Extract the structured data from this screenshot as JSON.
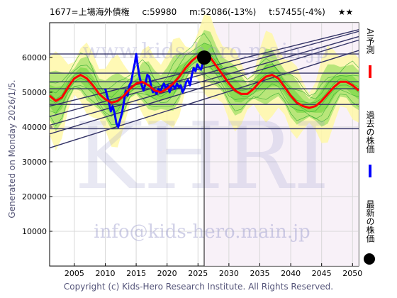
{
  "header": {
    "code_name": "1677=上場海外債権",
    "current": "c:59980",
    "mean": "m:52086(-13%)",
    "target": "t:57455(-4%)",
    "stars": "★★"
  },
  "side_text": "Generated on Monday 2026/1/5.",
  "copyright": "Copyright (c) Kids-Hero Research Institute. All Rights Reserved.",
  "watermark": {
    "top": "www.kids-hero.main.jp",
    "center": "KHRI",
    "bottom": "info@kids-hero.main.jp"
  },
  "legend": [
    {
      "label": "AI予測",
      "color": "#ff0000"
    },
    {
      "label": "過去の株価",
      "color": "#0000ff"
    },
    {
      "label": "最新の株価",
      "color": "#000000"
    }
  ],
  "colors": {
    "prediction": "#ff0000",
    "history": "#0000ff",
    "band_green": "#7fd84a",
    "band_yellow": "#fff8a8",
    "trend_lines": "#333366"
  },
  "chart_data": {
    "type": "line",
    "xlim": [
      2001,
      2051
    ],
    "ylim": [
      0,
      70000
    ],
    "x_ticks": [
      2005,
      2010,
      2015,
      2020,
      2025,
      2030,
      2035,
      2040,
      2045,
      2050
    ],
    "y_ticks": [
      10000,
      20000,
      30000,
      40000,
      50000,
      60000
    ],
    "current_point": {
      "x": 2026.0,
      "y": 59980
    },
    "current_vline_x": 2026.0,
    "series": [
      {
        "name": "過去の株価",
        "points": [
          [
            2010.0,
            51000
          ],
          [
            2010.3,
            49000
          ],
          [
            2010.6,
            47000
          ],
          [
            2010.9,
            44500
          ],
          [
            2011.2,
            46000
          ],
          [
            2011.5,
            44000
          ],
          [
            2011.8,
            41000
          ],
          [
            2012.1,
            40000
          ],
          [
            2012.4,
            42000
          ],
          [
            2012.7,
            44000
          ],
          [
            2013.0,
            47000
          ],
          [
            2013.3,
            50500
          ],
          [
            2013.6,
            49000
          ],
          [
            2013.9,
            52000
          ],
          [
            2014.2,
            53000
          ],
          [
            2014.5,
            56000
          ],
          [
            2014.8,
            58500
          ],
          [
            2015.0,
            61000
          ],
          [
            2015.3,
            57000
          ],
          [
            2015.6,
            54000
          ],
          [
            2015.9,
            52000
          ],
          [
            2016.2,
            50500
          ],
          [
            2016.5,
            52500
          ],
          [
            2016.8,
            55000
          ],
          [
            2017.1,
            54500
          ],
          [
            2017.4,
            52000
          ],
          [
            2017.7,
            50000
          ],
          [
            2018.0,
            50500
          ],
          [
            2018.3,
            49500
          ],
          [
            2018.6,
            51000
          ],
          [
            2018.9,
            50000
          ],
          [
            2019.2,
            51500
          ],
          [
            2019.5,
            52500
          ],
          [
            2019.8,
            51000
          ],
          [
            2020.1,
            52000
          ],
          [
            2020.4,
            50000
          ],
          [
            2020.7,
            51500
          ],
          [
            2021.0,
            52000
          ],
          [
            2021.3,
            51000
          ],
          [
            2021.6,
            52500
          ],
          [
            2021.9,
            51500
          ],
          [
            2022.2,
            52000
          ],
          [
            2022.5,
            50000
          ],
          [
            2022.8,
            51000
          ],
          [
            2023.1,
            53000
          ],
          [
            2023.4,
            53500
          ],
          [
            2023.7,
            52000
          ],
          [
            2024.0,
            55000
          ],
          [
            2024.3,
            57000
          ],
          [
            2024.6,
            56000
          ],
          [
            2024.9,
            58000
          ],
          [
            2025.2,
            57000
          ],
          [
            2025.5,
            56500
          ],
          [
            2025.8,
            58500
          ],
          [
            2026.0,
            59980
          ]
        ]
      },
      {
        "name": "AI予測",
        "points": [
          [
            2001.0,
            49000
          ],
          [
            2002.0,
            47500
          ],
          [
            2003.0,
            48500
          ],
          [
            2004.0,
            51500
          ],
          [
            2005.0,
            54000
          ],
          [
            2006.0,
            55000
          ],
          [
            2007.0,
            54000
          ],
          [
            2008.0,
            52000
          ],
          [
            2009.0,
            49500
          ],
          [
            2010.0,
            48000
          ],
          [
            2011.0,
            47000
          ],
          [
            2012.0,
            47500
          ],
          [
            2013.0,
            49000
          ],
          [
            2014.0,
            51000
          ],
          [
            2015.0,
            52500
          ],
          [
            2016.0,
            53000
          ],
          [
            2017.0,
            52000
          ],
          [
            2018.0,
            50500
          ],
          [
            2019.0,
            50000
          ],
          [
            2020.0,
            51000
          ],
          [
            2021.0,
            52500
          ],
          [
            2022.0,
            54500
          ],
          [
            2023.0,
            57000
          ],
          [
            2024.0,
            59000
          ],
          [
            2025.0,
            60500
          ],
          [
            2026.0,
            61000
          ],
          [
            2027.0,
            60000
          ],
          [
            2028.0,
            57500
          ],
          [
            2029.0,
            55000
          ],
          [
            2030.0,
            52500
          ],
          [
            2031.0,
            50500
          ],
          [
            2032.0,
            49500
          ],
          [
            2033.0,
            49500
          ],
          [
            2034.0,
            51000
          ],
          [
            2035.0,
            53000
          ],
          [
            2036.0,
            54500
          ],
          [
            2037.0,
            55000
          ],
          [
            2038.0,
            54000
          ],
          [
            2039.0,
            51500
          ],
          [
            2040.0,
            49000
          ],
          [
            2041.0,
            47000
          ],
          [
            2042.0,
            46000
          ],
          [
            2043.0,
            45500
          ],
          [
            2044.0,
            46000
          ],
          [
            2045.0,
            47500
          ],
          [
            2046.0,
            49500
          ],
          [
            2047.0,
            51500
          ],
          [
            2048.0,
            53000
          ],
          [
            2049.0,
            53000
          ],
          [
            2050.0,
            52000
          ],
          [
            2051.0,
            50500
          ]
        ]
      }
    ],
    "trend_lines": [
      [
        [
          2001,
          43000
        ],
        [
          2051,
          67500
        ]
      ],
      [
        [
          2001,
          40500
        ],
        [
          2051,
          66000
        ]
      ],
      [
        [
          2001,
          34000
        ],
        [
          2051,
          62000
        ]
      ],
      [
        [
          2001,
          38000
        ],
        [
          2051,
          65000
        ]
      ],
      [
        [
          2001,
          46000
        ],
        [
          2051,
          68000
        ]
      ]
    ],
    "h_lines": [
      61000,
      55500,
      53000,
      51000,
      46500,
      39500
    ]
  }
}
